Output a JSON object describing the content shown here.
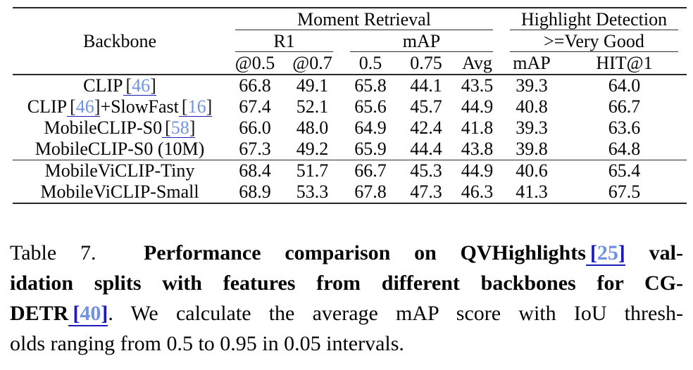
{
  "colors": {
    "rule": "#262626",
    "rule_light": "#2a2a2a",
    "link_number": "#6f92e3",
    "link_underline": "#1c1cb8",
    "text": "#050505"
  },
  "table": {
    "corner_header": "Backbone",
    "groups_row1": {
      "moment_retrieval": "Moment Retrieval",
      "highlight_detection": "Highlight Detection"
    },
    "groups_row2": {
      "r1": "R1",
      "map": "mAP",
      "very_good": ">=Very Good"
    },
    "columns": [
      "@0.5",
      "@0.7",
      "0.5",
      "0.75",
      "Avg",
      "mAP",
      "HIT@1"
    ],
    "rows": [
      {
        "label": [
          {
            "text": "CLIP"
          },
          {
            "cite": "[46]"
          }
        ],
        "values": [
          "66.8",
          "49.1",
          "65.8",
          "44.1",
          "43.5",
          "39.3",
          "64.0"
        ],
        "bold_values": false,
        "rule_above": false
      },
      {
        "label": [
          {
            "text": "CLIP"
          },
          {
            "cite": "[46]"
          },
          {
            "text": "+SlowFast"
          },
          {
            "cite": "[16]"
          }
        ],
        "values": [
          "67.4",
          "52.1",
          "65.6",
          "45.7",
          "44.9",
          "40.8",
          "66.7"
        ],
        "bold_values": false,
        "rule_above": false
      },
      {
        "label": [
          {
            "text": "MobileCLIP-S0"
          },
          {
            "cite": "[58]"
          }
        ],
        "values": [
          "66.0",
          "48.0",
          "64.9",
          "42.4",
          "41.8",
          "39.3",
          "63.6"
        ],
        "bold_values": false,
        "rule_above": false
      },
      {
        "label": [
          {
            "text": "MobileCLIP-S0 (10M)"
          }
        ],
        "values": [
          "67.3",
          "49.2",
          "65.9",
          "44.4",
          "43.8",
          "39.8",
          "64.8"
        ],
        "bold_values": false,
        "rule_above": false
      },
      {
        "label": [
          {
            "text": "MobileViCLIP-Tiny"
          }
        ],
        "values": [
          "68.4",
          "51.7",
          "66.7",
          "45.3",
          "44.9",
          "40.6",
          "65.4"
        ],
        "bold_values": false,
        "rule_above": true
      },
      {
        "label": [
          {
            "text": "MobileViCLIP-Small"
          }
        ],
        "values": [
          "68.9",
          "53.3",
          "67.8",
          "47.3",
          "46.3",
          "41.3",
          "67.5"
        ],
        "bold_values": true,
        "rule_above": false
      }
    ]
  },
  "caption": {
    "lines": [
      [
        {
          "text": "Table 7.  "
        },
        {
          "text": "Performance comparison on QVHighlights",
          "bold": true
        },
        {
          "cite": "[25]",
          "bold": true
        },
        {
          "text": " val-",
          "bold": true
        }
      ],
      [
        {
          "text": "idation splits with features from different backbones for CG-",
          "bold": true
        }
      ],
      [
        {
          "text": "DETR",
          "bold": true
        },
        {
          "cite": "[40]",
          "bold": true
        },
        {
          "text": ". We calculate the average mAP score with IoU thresh-"
        }
      ],
      [
        {
          "text": "olds ranging from 0.5 to 0.95 in 0.05 intervals."
        }
      ]
    ]
  }
}
